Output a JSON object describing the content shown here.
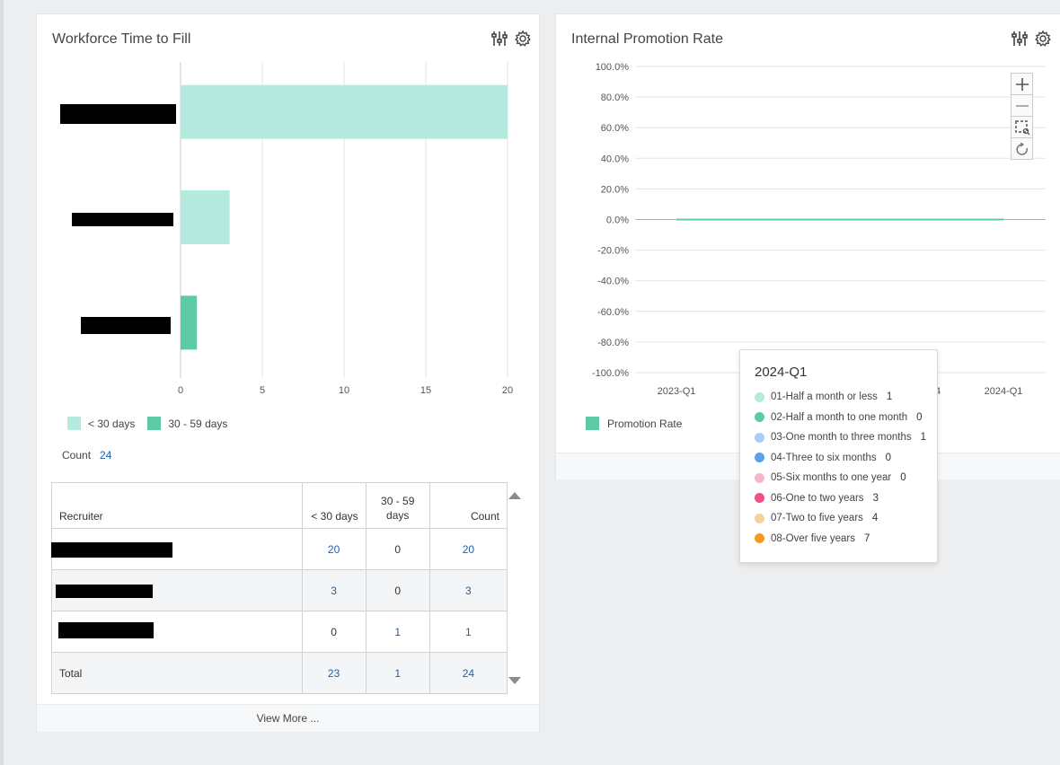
{
  "left_card": {
    "title": "Workforce Time to Fill",
    "chart_data": {
      "type": "bar",
      "orientation": "horizontal",
      "stacked": true,
      "categories": [
        "[redacted]",
        "[redacted]",
        "[redacted]"
      ],
      "series": [
        {
          "name": "< 30 days",
          "values": [
            20,
            3,
            0
          ],
          "color": "#b4ebde"
        },
        {
          "name": "30 - 59 days",
          "values": [
            0,
            0,
            1
          ],
          "color": "#5ecaa5"
        }
      ],
      "xlim": [
        0,
        20
      ],
      "x_ticks": [
        "0",
        "5",
        "10",
        "15",
        "20"
      ],
      "grid": true,
      "legend": "bottom-left"
    },
    "count_label": "Count",
    "count_value": "24",
    "table": {
      "headers": [
        "Recruiter",
        "< 30 days",
        "30 - 59 days",
        "Count"
      ],
      "rows": [
        {
          "lt30": "20",
          "d30_59": "0",
          "count": "20"
        },
        {
          "lt30": "3",
          "d30_59": "0",
          "count": "3"
        },
        {
          "lt30": "0",
          "d30_59": "1",
          "count": "1"
        }
      ],
      "total": {
        "label": "Total",
        "lt30": "23",
        "d30_59": "1",
        "count": "24"
      }
    },
    "view_more": "View More ..."
  },
  "right_card": {
    "title": "Internal Promotion Rate",
    "chart_data": {
      "type": "line",
      "x": [
        "2023-Q1",
        "2024-Q1"
      ],
      "x_ticks_visible": [
        "2023-Q1",
        "4",
        "2024-Q1"
      ],
      "series": [
        {
          "name": "Promotion Rate",
          "values": [
            0,
            0
          ],
          "color": "#5ecaa5"
        }
      ],
      "ylim": [
        -100,
        100
      ],
      "y_ticks": [
        "100.0%",
        "80.0%",
        "60.0%",
        "40.0%",
        "20.0%",
        "0.0%",
        "-20.0%",
        "-40.0%",
        "-60.0%",
        "-80.0%",
        "-100.0%"
      ],
      "grid": true,
      "legend": "bottom-left"
    },
    "legend_label": "Promotion Rate"
  },
  "tooltip": {
    "title": "2024-Q1",
    "items": [
      {
        "label": "01-Half a month or less",
        "value": "1",
        "color": "#b4ebde"
      },
      {
        "label": "02-Half a month to one month",
        "value": "0",
        "color": "#5ecaa5"
      },
      {
        "label": "03-One month to three months",
        "value": "1",
        "color": "#a9cdf7"
      },
      {
        "label": "04-Three to six months",
        "value": "0",
        "color": "#5b9ff0"
      },
      {
        "label": "05-Six months to one year",
        "value": "0",
        "color": "#f7b6cd"
      },
      {
        "label": "06-One to two years",
        "value": "3",
        "color": "#f0508b"
      },
      {
        "label": "07-Two to five years",
        "value": "4",
        "color": "#f8d19a"
      },
      {
        "label": "08-Over five years",
        "value": "7",
        "color": "#f79a22"
      }
    ]
  },
  "icons": {
    "filter": "sliders-icon",
    "settings": "gear-icon",
    "zoom_in": "plus-icon",
    "zoom_out": "minus-icon",
    "zoom_select": "box-zoom-icon",
    "reset": "reset-icon"
  }
}
